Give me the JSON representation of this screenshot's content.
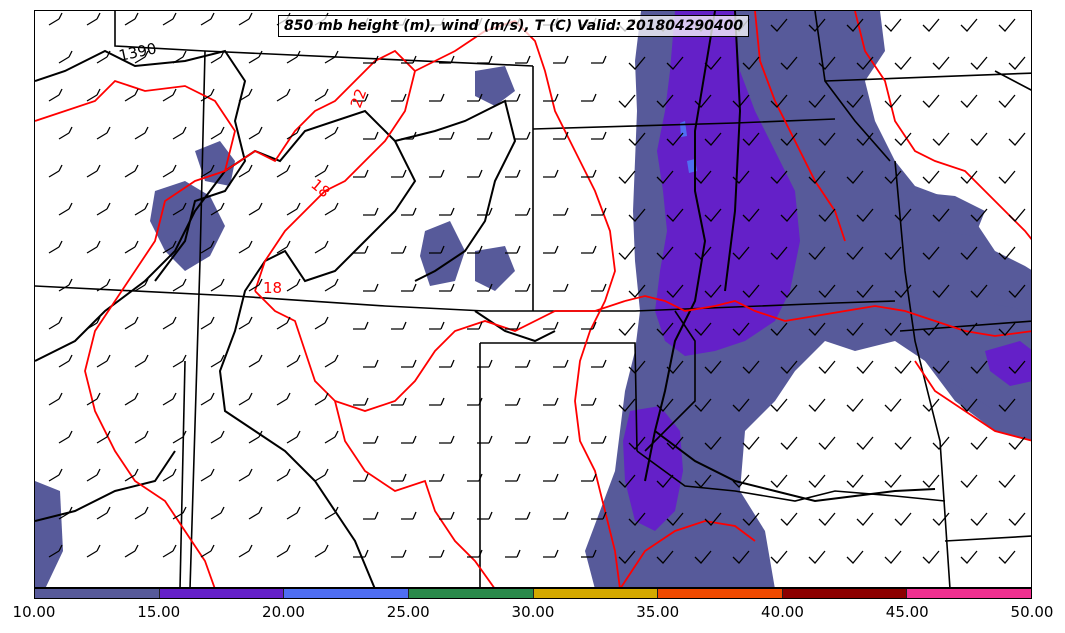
{
  "title": "850 mb height (m), wind (m/s), T (C) Valid: 201804290400",
  "colors": {
    "shade_10_15": "#575a9a",
    "shade_15_20": "#6420c8",
    "temp_contour": "#ff0000",
    "height_contour": "#000000",
    "boundary": "#000000"
  },
  "contour_labels": {
    "height": [
      "1390"
    ],
    "temperature": [
      "22",
      "18",
      "18"
    ]
  },
  "colorbar": {
    "ticks": [
      "10.00",
      "15.00",
      "20.00",
      "25.00",
      "30.00",
      "35.00",
      "40.00",
      "45.00",
      "50.00"
    ],
    "colors": [
      "#575a9a",
      "#6420c8",
      "#4f6ef2",
      "#2a8a4b",
      "#d4a900",
      "#f04a00",
      "#8c0000",
      "#f03090"
    ]
  }
}
